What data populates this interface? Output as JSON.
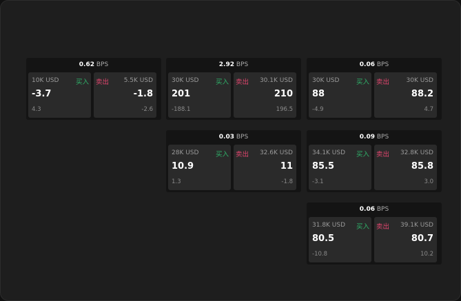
{
  "unit": "BPS",
  "buy_label": "买入",
  "sell_label": "卖出",
  "colors": {
    "buy": "#2fb26a",
    "sell": "#e0456d"
  },
  "widgets": [
    {
      "spread": "0.62",
      "buy": {
        "qty": "10K USD",
        "price": "-3.7",
        "change": "4.3"
      },
      "sell": {
        "qty": "5.5K USD",
        "price": "-1.8",
        "change": "-2.6"
      }
    },
    {
      "spread": "2.92",
      "buy": {
        "qty": "30K USD",
        "price": "201",
        "change": "-188.1"
      },
      "sell": {
        "qty": "30.1K USD",
        "price": "210",
        "change": "196.5"
      }
    },
    {
      "spread": "0.06",
      "buy": {
        "qty": "30K USD",
        "price": "88",
        "change": "-4.9"
      },
      "sell": {
        "qty": "30K USD",
        "price": "88.2",
        "change": "4.7"
      }
    },
    {
      "spread": "0.03",
      "buy": {
        "qty": "28K USD",
        "price": "10.9",
        "change": "1.3"
      },
      "sell": {
        "qty": "32.6K USD",
        "price": "11",
        "change": "-1.8"
      }
    },
    {
      "spread": "0.09",
      "buy": {
        "qty": "34.1K USD",
        "price": "85.5",
        "change": "-3.1"
      },
      "sell": {
        "qty": "32.8K USD",
        "price": "85.8",
        "change": "3.0"
      }
    },
    {
      "spread": "0.06",
      "buy": {
        "qty": "31.8K USD",
        "price": "80.5",
        "change": "-10.8"
      },
      "sell": {
        "qty": "39.1K USD",
        "price": "80.7",
        "change": "10.2"
      }
    }
  ]
}
